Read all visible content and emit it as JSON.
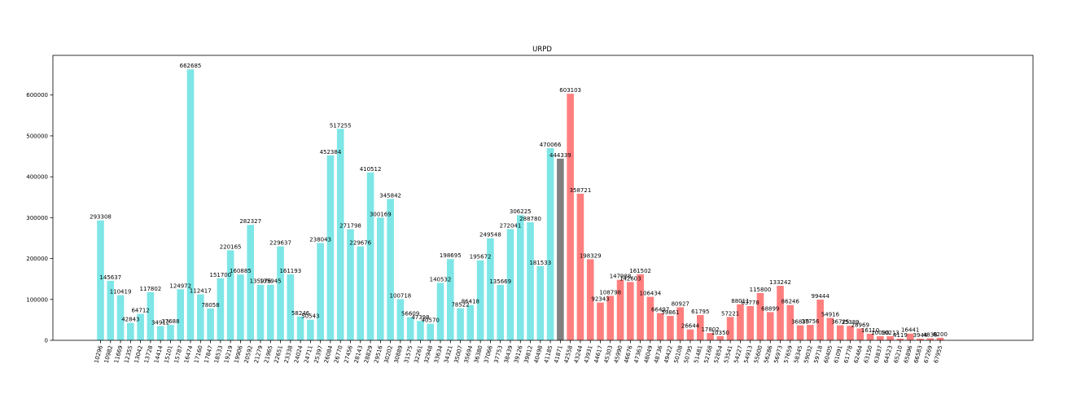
{
  "chart_data": {
    "type": "bar",
    "title": "URPD",
    "xlabel": "",
    "ylabel": "",
    "ylim": [
      0,
      697000
    ],
    "yticks": [
      0,
      100000,
      200000,
      300000,
      400000,
      500000,
      600000
    ],
    "grid": false,
    "colors": {
      "below": "#7ee6e6",
      "current": "#808080",
      "above": "#ff7f7f"
    },
    "categories": [
      "10296",
      "10982",
      "11669",
      "12355",
      "13042",
      "13728",
      "14414",
      "15101",
      "15787",
      "16474",
      "17160",
      "17847",
      "18533",
      "19219",
      "19906",
      "20592",
      "21279",
      "21965",
      "22651",
      "23338",
      "24024",
      "24711",
      "25397",
      "26084",
      "26770",
      "27456",
      "28143",
      "28829",
      "29516",
      "30202",
      "30889",
      "31575",
      "32261",
      "32948",
      "33634",
      "34321",
      "35007",
      "35694",
      "36380",
      "37066",
      "37753",
      "38439",
      "39126",
      "39812",
      "40498",
      "41185",
      "41871",
      "42558",
      "43244",
      "43931",
      "44617",
      "45303",
      "45990",
      "46676",
      "47363",
      "48049",
      "48736",
      "49422",
      "50108",
      "50795",
      "51481",
      "52168",
      "52854",
      "53541",
      "54227",
      "54913",
      "55600",
      "56286",
      "56973",
      "57659",
      "58345",
      "59032",
      "59718",
      "60405",
      "61091",
      "61778",
      "62464",
      "63150",
      "63837",
      "64523",
      "65210",
      "65896",
      "66583",
      "67269",
      "67955"
    ],
    "values": [
      293308,
      145637,
      110419,
      42843,
      64712,
      117802,
      34912,
      37688,
      124972,
      662685,
      112417,
      78058,
      151700,
      220165,
      160885,
      282327,
      135976,
      135945,
      229637,
      161193,
      58246,
      50543,
      238043,
      452384,
      517255,
      271798,
      229676,
      410512,
      300169,
      345842,
      100718,
      56609,
      47398,
      40570,
      140532,
      198695,
      78522,
      86418,
      195672,
      249548,
      135669,
      272041,
      306225,
      288780,
      181533,
      470066,
      444339,
      603103,
      358721,
      198329,
      92343,
      108798,
      147988,
      142603,
      161502,
      106434,
      66497,
      59861,
      80927,
      26644,
      61795,
      17802,
      10350,
      57221,
      88011,
      83778,
      115800,
      68899,
      133242,
      86246,
      36839,
      37756,
      99444,
      54916,
      36725,
      35389,
      28969,
      16110,
      10090,
      10213,
      4119,
      16441,
      3944,
      4838,
      6200
    ],
    "labels": [
      "293308",
      "145637",
      "110419",
      "42843",
      "64712",
      "117802",
      "34912",
      "37688",
      "124972",
      "662685",
      "112417",
      "78058",
      "151700",
      "220165",
      "160885",
      "282327",
      "135976",
      "135945",
      "229637",
      "161193",
      "58246",
      "50543",
      "238043",
      "452384",
      "517255",
      "271798",
      "229676",
      "410512",
      "300169",
      "345842",
      "100718",
      "56609",
      "47398",
      "40570",
      "140532",
      "198695",
      "78522",
      "86418",
      "195672",
      "249548",
      "135669",
      "272041",
      "306225",
      "288780",
      "181533",
      "470066",
      "444339",
      "603103",
      "358721",
      "198329",
      "92343",
      "108798",
      "147988",
      "142603",
      "161502",
      "106434",
      "66497",
      "59861",
      "80927",
      "26644",
      "61795",
      "17802",
      "10350",
      "57221",
      "88011",
      "83778",
      "115800",
      "68899",
      "133242",
      "86246",
      "36839",
      "37756",
      "99444",
      "54916",
      "36725",
      "35389",
      "28969",
      "16110",
      "10090",
      "10213",
      "4119",
      "16441",
      "3944",
      "4838",
      "6200"
    ],
    "current_index": 46
  }
}
